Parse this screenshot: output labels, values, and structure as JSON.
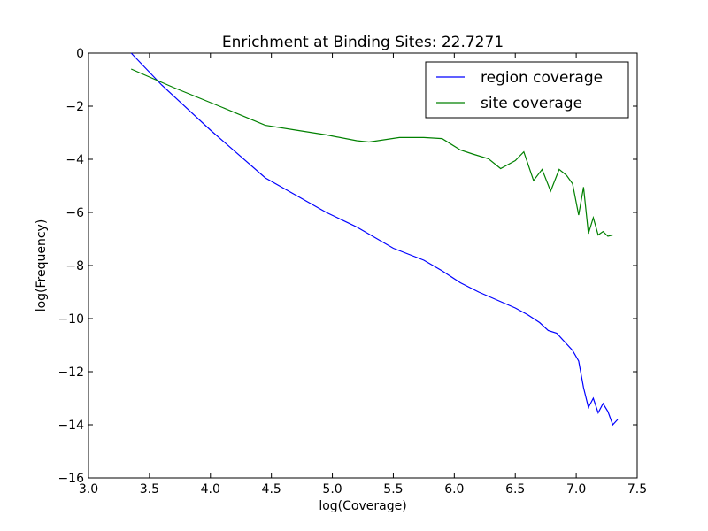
{
  "chart_data": {
    "type": "line",
    "title": "Enrichment at Binding Sites: 22.7271",
    "xlabel": "log(Coverage)",
    "ylabel": "log(Frequency)",
    "xlim": [
      3.0,
      7.5
    ],
    "ylim": [
      -16,
      0
    ],
    "xticks": [
      3.0,
      3.5,
      4.0,
      4.5,
      5.0,
      5.5,
      6.0,
      6.5,
      7.0,
      7.5
    ],
    "xtick_labels": [
      "3.0",
      "3.5",
      "4.0",
      "4.5",
      "5.0",
      "5.5",
      "6.0",
      "6.5",
      "7.0",
      "7.5"
    ],
    "yticks": [
      0,
      -2,
      -4,
      -6,
      -8,
      -10,
      -12,
      -14,
      -16
    ],
    "ytick_labels": [
      "0",
      "−2",
      "−4",
      "−6",
      "−8",
      "−10",
      "−12",
      "−14",
      "−16"
    ],
    "grid": false,
    "legend_position": "top-right",
    "series": [
      {
        "name": "region coverage",
        "color": "#0000ff",
        "points": [
          [
            3.35,
            0.0
          ],
          [
            3.6,
            -1.2
          ],
          [
            4.0,
            -2.9
          ],
          [
            4.45,
            -4.7
          ],
          [
            4.7,
            -5.35
          ],
          [
            4.95,
            -6.0
          ],
          [
            5.2,
            -6.55
          ],
          [
            5.5,
            -7.35
          ],
          [
            5.75,
            -7.8
          ],
          [
            5.9,
            -8.2
          ],
          [
            6.05,
            -8.65
          ],
          [
            6.2,
            -9.0
          ],
          [
            6.35,
            -9.3
          ],
          [
            6.5,
            -9.6
          ],
          [
            6.6,
            -9.85
          ],
          [
            6.7,
            -10.15
          ],
          [
            6.77,
            -10.45
          ],
          [
            6.84,
            -10.55
          ],
          [
            6.9,
            -10.85
          ],
          [
            6.97,
            -11.2
          ],
          [
            7.02,
            -11.6
          ],
          [
            7.06,
            -12.6
          ],
          [
            7.1,
            -13.35
          ],
          [
            7.14,
            -13.0
          ],
          [
            7.18,
            -13.55
          ],
          [
            7.22,
            -13.2
          ],
          [
            7.26,
            -13.5
          ],
          [
            7.3,
            -14.0
          ],
          [
            7.34,
            -13.8
          ]
        ]
      },
      {
        "name": "site coverage",
        "color": "#008000",
        "points": [
          [
            3.35,
            -0.6
          ],
          [
            3.7,
            -1.3
          ],
          [
            4.1,
            -2.05
          ],
          [
            4.45,
            -2.72
          ],
          [
            4.7,
            -2.9
          ],
          [
            4.95,
            -3.08
          ],
          [
            5.2,
            -3.3
          ],
          [
            5.3,
            -3.35
          ],
          [
            5.55,
            -3.18
          ],
          [
            5.75,
            -3.18
          ],
          [
            5.9,
            -3.22
          ],
          [
            6.05,
            -3.65
          ],
          [
            6.15,
            -3.8
          ],
          [
            6.28,
            -3.98
          ],
          [
            6.38,
            -4.35
          ],
          [
            6.5,
            -4.05
          ],
          [
            6.57,
            -3.72
          ],
          [
            6.65,
            -4.8
          ],
          [
            6.72,
            -4.38
          ],
          [
            6.79,
            -5.2
          ],
          [
            6.86,
            -4.38
          ],
          [
            6.92,
            -4.6
          ],
          [
            6.97,
            -4.92
          ],
          [
            7.02,
            -6.1
          ],
          [
            7.06,
            -5.05
          ],
          [
            7.1,
            -6.8
          ],
          [
            7.14,
            -6.2
          ],
          [
            7.18,
            -6.85
          ],
          [
            7.22,
            -6.72
          ],
          [
            7.26,
            -6.9
          ],
          [
            7.3,
            -6.85
          ]
        ]
      }
    ]
  }
}
